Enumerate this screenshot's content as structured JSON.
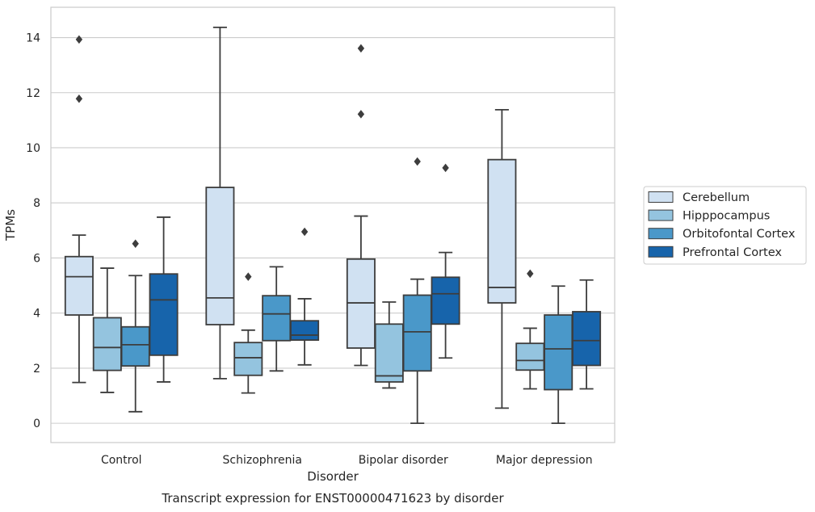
{
  "chart_data": {
    "type": "boxplot",
    "title": "",
    "caption": "Transcript expression for ENST00000471623 by disorder",
    "xlabel": "Disorder",
    "ylabel": "TPMs",
    "ylim": [
      -0.7,
      15.1
    ],
    "yticks": [
      0,
      2,
      4,
      6,
      8,
      10,
      12,
      14
    ],
    "grid": "horizontal",
    "legend_position": "right",
    "categories": [
      "Control",
      "Schizophrenia",
      "Bipolar disorder",
      "Major depression"
    ],
    "series": [
      {
        "name": "Cerebellum",
        "color": "#d0e1f2",
        "boxes": [
          {
            "whisker_low": 1.48,
            "q1": 3.93,
            "median": 5.32,
            "q3": 6.05,
            "whisker_high": 6.83,
            "outliers": [
              11.78,
              13.93
            ]
          },
          {
            "whisker_low": 1.62,
            "q1": 3.58,
            "median": 4.55,
            "q3": 8.56,
            "whisker_high": 14.37,
            "outliers": []
          },
          {
            "whisker_low": 2.1,
            "q1": 2.73,
            "median": 4.37,
            "q3": 5.96,
            "whisker_high": 7.52,
            "outliers": [
              11.22,
              13.61
            ]
          },
          {
            "whisker_low": 0.55,
            "q1": 4.37,
            "median": 4.93,
            "q3": 9.57,
            "whisker_high": 11.38,
            "outliers": []
          }
        ]
      },
      {
        "name": "Hipppocampus",
        "color": "#94c4df",
        "boxes": [
          {
            "whisker_low": 1.12,
            "q1": 1.92,
            "median": 2.75,
            "q3": 3.83,
            "whisker_high": 5.63,
            "outliers": []
          },
          {
            "whisker_low": 1.1,
            "q1": 1.74,
            "median": 2.38,
            "q3": 2.93,
            "whisker_high": 3.38,
            "outliers": [
              5.32
            ]
          },
          {
            "whisker_low": 1.28,
            "q1": 1.5,
            "median": 1.72,
            "q3": 3.6,
            "whisker_high": 4.4,
            "outliers": []
          },
          {
            "whisker_low": 1.25,
            "q1": 1.93,
            "median": 2.28,
            "q3": 2.9,
            "whisker_high": 3.45,
            "outliers": [
              5.43
            ]
          }
        ]
      },
      {
        "name": "Orbitofontal Cortex",
        "color": "#4a98c9",
        "boxes": [
          {
            "whisker_low": 0.42,
            "q1": 2.08,
            "median": 2.85,
            "q3": 3.5,
            "whisker_high": 5.36,
            "outliers": [
              6.52
            ]
          },
          {
            "whisker_low": 1.9,
            "q1": 3.0,
            "median": 3.97,
            "q3": 4.63,
            "whisker_high": 5.68,
            "outliers": []
          },
          {
            "whisker_low": 0.0,
            "q1": 1.9,
            "median": 3.32,
            "q3": 4.65,
            "whisker_high": 5.23,
            "outliers": [
              9.5
            ]
          },
          {
            "whisker_low": 0.0,
            "q1": 1.22,
            "median": 2.7,
            "q3": 3.93,
            "whisker_high": 4.98,
            "outliers": []
          }
        ]
      },
      {
        "name": "Prefrontal Cortex",
        "color": "#1764ab",
        "boxes": [
          {
            "whisker_low": 1.5,
            "q1": 2.47,
            "median": 4.48,
            "q3": 5.42,
            "whisker_high": 7.48,
            "outliers": []
          },
          {
            "whisker_low": 2.12,
            "q1": 3.02,
            "median": 3.2,
            "q3": 3.72,
            "whisker_high": 4.52,
            "outliers": [
              6.95
            ]
          },
          {
            "whisker_low": 2.37,
            "q1": 3.6,
            "median": 4.7,
            "q3": 5.3,
            "whisker_high": 6.2,
            "outliers": [
              9.27
            ]
          },
          {
            "whisker_low": 1.25,
            "q1": 2.1,
            "median": 3.0,
            "q3": 4.05,
            "whisker_high": 5.2,
            "outliers": []
          }
        ]
      }
    ]
  }
}
